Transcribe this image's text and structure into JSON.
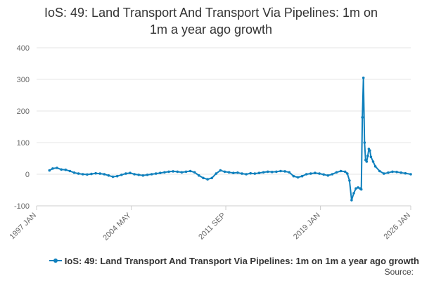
{
  "title_lines": [
    "IoS: 49: Land Transport And Transport Via Pipelines: 1m on",
    "1m a year ago growth"
  ],
  "legend": {
    "label": "IoS: 49: Land Transport And Transport Via Pipelines: 1m on 1m a year ago growth"
  },
  "source_label": "Source:",
  "colors": {
    "series": "#0f80bd",
    "grid": "#e6e6e6",
    "axis_text": "#666666"
  },
  "chart_data": {
    "type": "line",
    "title": "IoS: 49: Land Transport And Transport Via Pipelines: 1m on 1m a year ago growth",
    "xlabel": "",
    "ylabel": "",
    "ylim": [
      -100,
      400
    ],
    "yticks": [
      -100,
      0,
      100,
      200,
      300,
      400
    ],
    "xlim": [
      "1997-01",
      "2026-01"
    ],
    "xticks": [
      {
        "date": "1997-01",
        "label": "1997 JAN"
      },
      {
        "date": "2004-05",
        "label": "2004 MAY"
      },
      {
        "date": "2011-09",
        "label": "2011 SEP"
      },
      {
        "date": "2019-01",
        "label": "2019 JAN"
      },
      {
        "date": "2026-01",
        "label": "2026 JAN"
      }
    ],
    "grid": true,
    "legend_position": "bottom",
    "series": [
      {
        "name": "IoS: 49: Land Transport And Transport Via Pipelines: 1m on 1m a year ago growth",
        "points": [
          [
            "1998-01",
            12
          ],
          [
            "1998-04",
            18
          ],
          [
            "1998-08",
            20
          ],
          [
            "1998-12",
            15
          ],
          [
            "1999-04",
            14
          ],
          [
            "1999-08",
            10
          ],
          [
            "1999-12",
            5
          ],
          [
            "2000-04",
            2
          ],
          [
            "2000-08",
            0
          ],
          [
            "2000-12",
            -1
          ],
          [
            "2001-04",
            1
          ],
          [
            "2001-08",
            3
          ],
          [
            "2001-12",
            2
          ],
          [
            "2002-04",
            0
          ],
          [
            "2002-08",
            -4
          ],
          [
            "2002-12",
            -8
          ],
          [
            "2003-04",
            -6
          ],
          [
            "2003-08",
            -2
          ],
          [
            "2003-12",
            2
          ],
          [
            "2004-04",
            4
          ],
          [
            "2004-08",
            0
          ],
          [
            "2004-12",
            -2
          ],
          [
            "2005-04",
            -4
          ],
          [
            "2005-08",
            -2
          ],
          [
            "2005-12",
            0
          ],
          [
            "2006-04",
            2
          ],
          [
            "2006-08",
            4
          ],
          [
            "2006-12",
            6
          ],
          [
            "2007-04",
            8
          ],
          [
            "2007-08",
            9
          ],
          [
            "2007-12",
            8
          ],
          [
            "2008-04",
            6
          ],
          [
            "2008-08",
            8
          ],
          [
            "2008-12",
            10
          ],
          [
            "2009-04",
            6
          ],
          [
            "2009-08",
            -4
          ],
          [
            "2009-12",
            -12
          ],
          [
            "2010-04",
            -16
          ],
          [
            "2010-08",
            -12
          ],
          [
            "2010-12",
            2
          ],
          [
            "2011-04",
            12
          ],
          [
            "2011-08",
            8
          ],
          [
            "2011-12",
            6
          ],
          [
            "2012-04",
            4
          ],
          [
            "2012-08",
            5
          ],
          [
            "2012-12",
            2
          ],
          [
            "2013-04",
            0
          ],
          [
            "2013-08",
            3
          ],
          [
            "2013-12",
            2
          ],
          [
            "2014-04",
            4
          ],
          [
            "2014-08",
            6
          ],
          [
            "2014-12",
            8
          ],
          [
            "2015-04",
            7
          ],
          [
            "2015-08",
            8
          ],
          [
            "2015-12",
            10
          ],
          [
            "2016-04",
            9
          ],
          [
            "2016-08",
            6
          ],
          [
            "2016-12",
            -6
          ],
          [
            "2017-04",
            -10
          ],
          [
            "2017-08",
            -6
          ],
          [
            "2017-12",
            0
          ],
          [
            "2018-04",
            2
          ],
          [
            "2018-08",
            4
          ],
          [
            "2018-12",
            2
          ],
          [
            "2019-04",
            -1
          ],
          [
            "2019-08",
            -4
          ],
          [
            "2019-12",
            0
          ],
          [
            "2020-04",
            6
          ],
          [
            "2020-08",
            10
          ],
          [
            "2020-12",
            8
          ],
          [
            "2021-02",
            2
          ],
          [
            "2021-04",
            -20
          ],
          [
            "2021-06",
            -82
          ],
          [
            "2021-08",
            -60
          ],
          [
            "2021-10",
            -45
          ],
          [
            "2021-12",
            -42
          ],
          [
            "2022-02",
            -45
          ],
          [
            "2022-03",
            -48
          ],
          [
            "2022-04",
            180
          ],
          [
            "2022-05",
            305
          ],
          [
            "2022-06",
            100
          ],
          [
            "2022-07",
            45
          ],
          [
            "2022-08",
            40
          ],
          [
            "2022-09",
            58
          ],
          [
            "2022-10",
            80
          ],
          [
            "2022-11",
            75
          ],
          [
            "2022-12",
            55
          ],
          [
            "2023-02",
            40
          ],
          [
            "2023-04",
            25
          ],
          [
            "2023-08",
            10
          ],
          [
            "2023-12",
            2
          ],
          [
            "2024-04",
            5
          ],
          [
            "2024-08",
            8
          ],
          [
            "2024-12",
            7
          ],
          [
            "2025-04",
            5
          ],
          [
            "2025-08",
            3
          ],
          [
            "2026-01",
            0
          ]
        ]
      }
    ]
  }
}
